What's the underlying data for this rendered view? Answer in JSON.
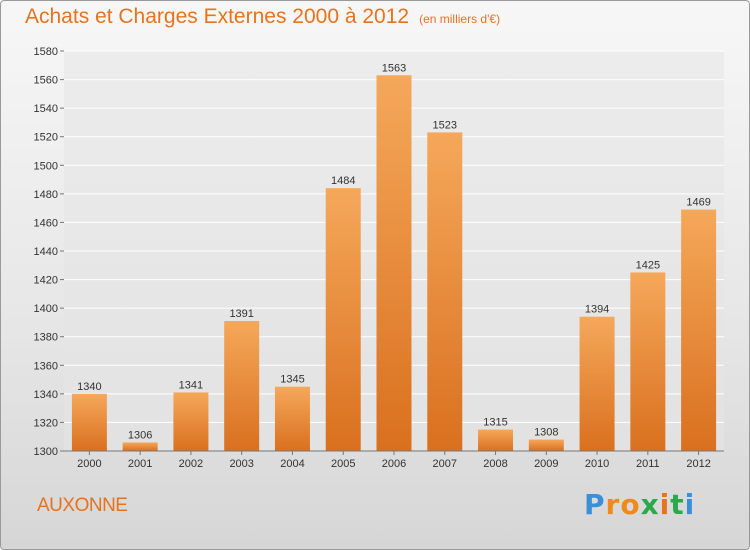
{
  "header": {
    "title": "Achats et Charges Externes 2000 à 2012",
    "unit": "(en milliers d'€)"
  },
  "commune": "AUXONNE",
  "brand": {
    "letters": [
      "P",
      "r",
      "o",
      "x",
      "i",
      "t",
      "i"
    ],
    "colors": [
      "#3a8fd8",
      "#f08a1c",
      "#f08a1c",
      "#2aa84a",
      "#e8731c",
      "#2aa84a",
      "#3a8fd8"
    ]
  },
  "colors": {
    "bar_light": "#f5a85a",
    "bar_dark": "#d9701f",
    "grid": "#ffffff",
    "accent": "#e8731c"
  },
  "chart_data": {
    "type": "bar",
    "categories": [
      "2000",
      "2001",
      "2002",
      "2003",
      "2004",
      "2005",
      "2006",
      "2007",
      "2008",
      "2009",
      "2010",
      "2011",
      "2012"
    ],
    "values": [
      1340,
      1306,
      1341,
      1391,
      1345,
      1484,
      1563,
      1523,
      1315,
      1308,
      1394,
      1425,
      1469
    ],
    "ylim": [
      1300,
      1580
    ],
    "yticks": [
      1300,
      1320,
      1340,
      1360,
      1380,
      1400,
      1420,
      1440,
      1460,
      1480,
      1500,
      1520,
      1540,
      1560,
      1580
    ],
    "grid": true,
    "data_labels": true
  }
}
